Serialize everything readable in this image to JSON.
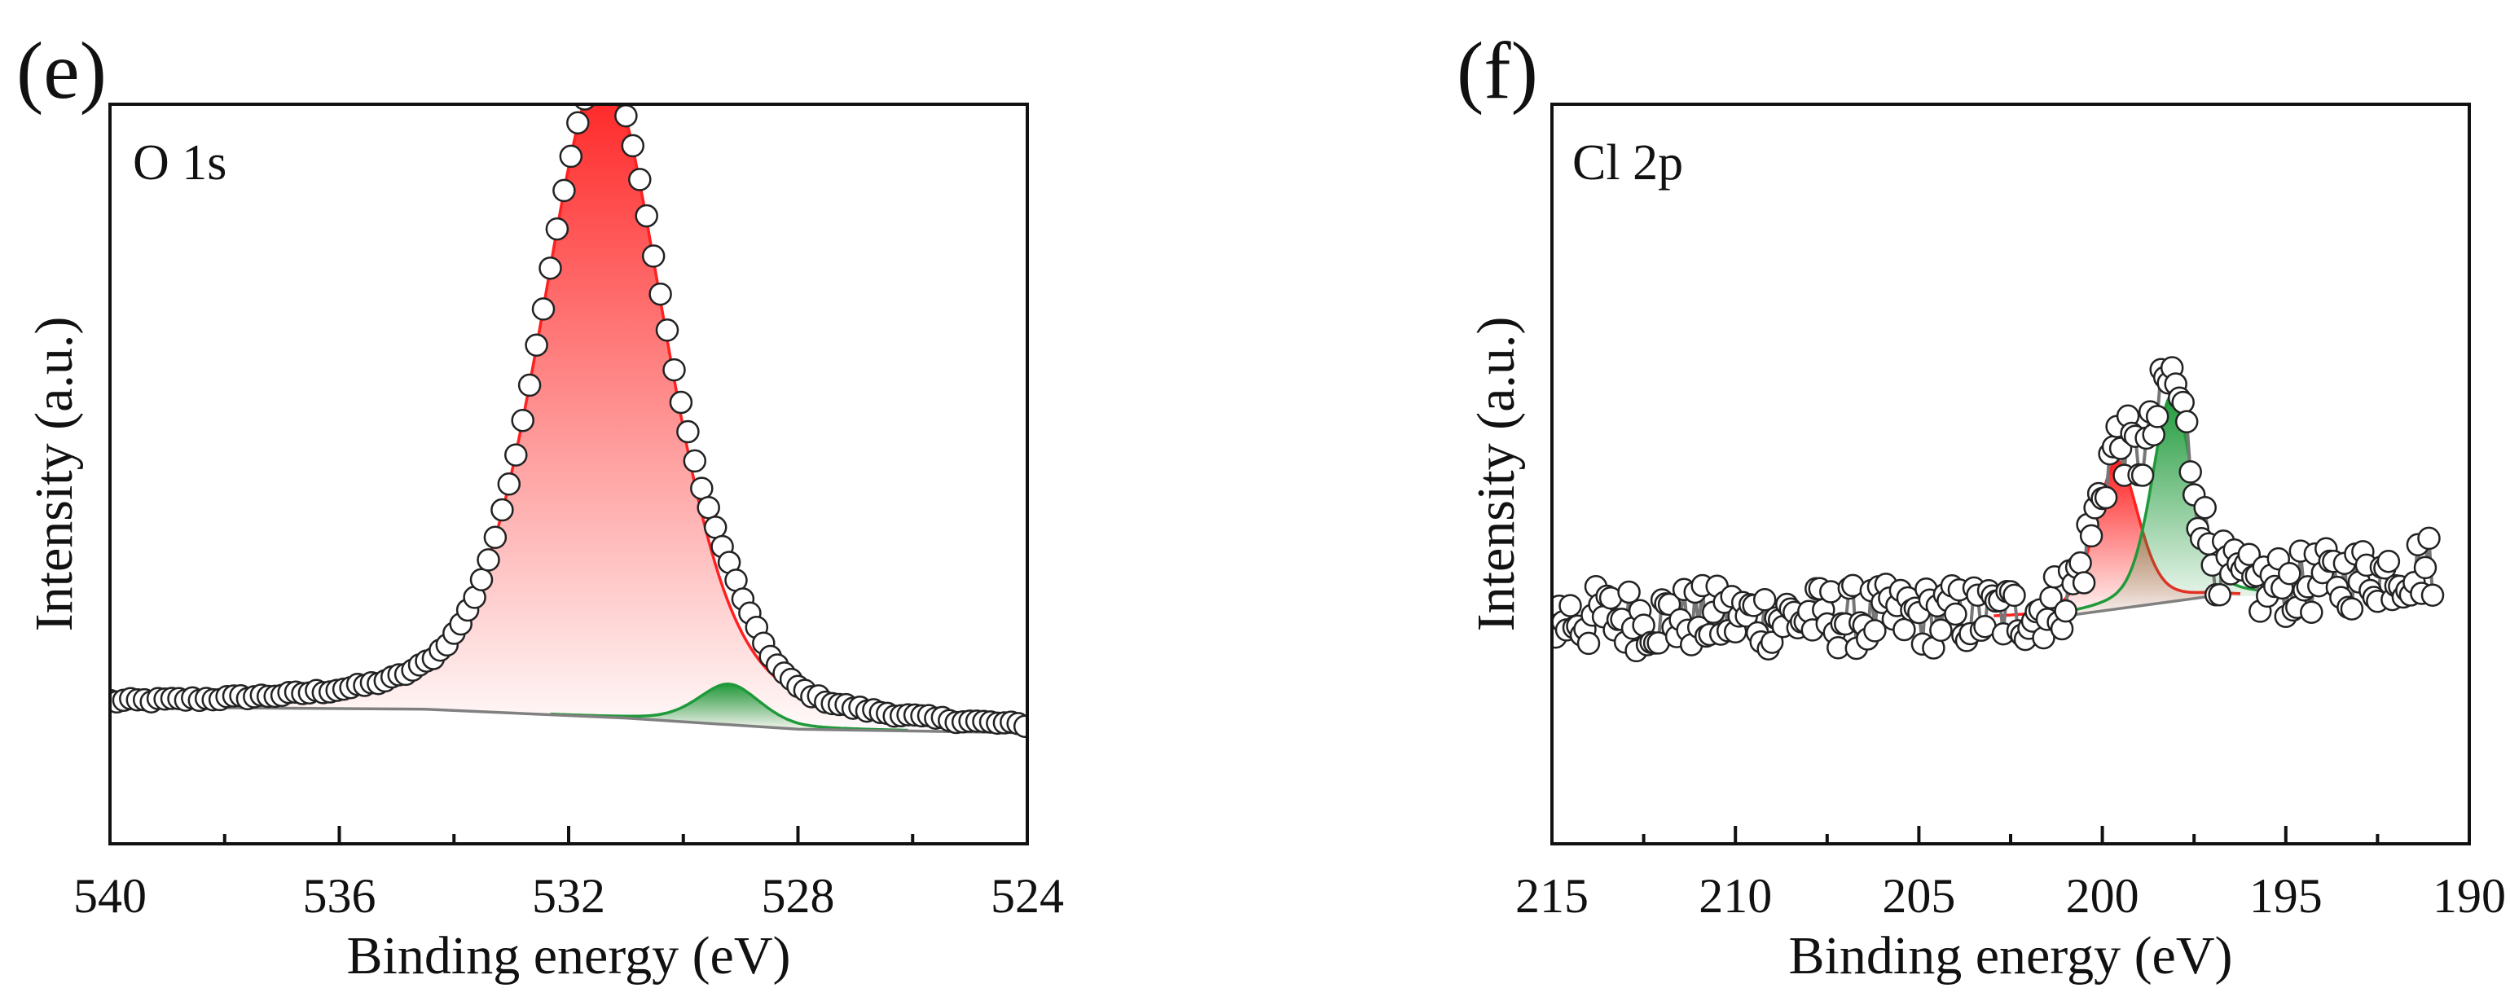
{
  "colors": {
    "axis": "#111111",
    "data_marker": "#222222",
    "background_line": "#808080",
    "peak_red": "#ff2020",
    "peak_green": "#1f9a3a"
  },
  "chart_data": [
    {
      "panel": "(e)",
      "label": "O 1s",
      "type": "line",
      "xlabel": "Binding energy (eV)",
      "ylabel": "Intensity (a.u.)",
      "xlim": [
        540,
        524
      ],
      "x_reversed": true,
      "ylim": [
        0,
        1
      ],
      "x_ticks": [
        540,
        536,
        532,
        528,
        524
      ],
      "x_tick_labels": [
        "540",
        "536",
        "532",
        "528",
        "524"
      ],
      "y_ticks_shown": false,
      "series": [
        {
          "name": "experimental",
          "style": "open-circle",
          "description": "raw XPS data points",
          "x_range": [
            540,
            524
          ],
          "sample_step_eV": 0.12
        },
        {
          "name": "background",
          "style": "line",
          "color": "#808080",
          "points": [
            [
              540,
              0.185
            ],
            [
              534.5,
              0.182
            ],
            [
              531,
              0.17
            ],
            [
              528,
              0.155
            ],
            [
              524,
              0.15
            ]
          ]
        },
        {
          "name": "peak 1 (red)",
          "style": "filled-peak",
          "color": "#ff2020",
          "center": 531.4,
          "height": 0.875,
          "fwhm": 2.6
        },
        {
          "name": "peak 2 (green)",
          "style": "filled-peak",
          "color": "#1f9a3a",
          "center": 529.2,
          "height": 0.055,
          "fwhm": 1.3
        }
      ]
    },
    {
      "panel": "(f)",
      "label": "Cl 2p",
      "type": "line",
      "xlabel": "Binding energy (eV)",
      "ylabel": "Intensity (a.u.)",
      "xlim": [
        215,
        190
      ],
      "x_reversed": true,
      "ylim": [
        0,
        1
      ],
      "x_ticks": [
        215,
        210,
        205,
        200,
        195,
        190
      ],
      "x_tick_labels": [
        "215",
        "210",
        "205",
        "200",
        "195",
        "190"
      ],
      "y_ticks_shown": false,
      "series": [
        {
          "name": "experimental",
          "style": "open-circle-connected",
          "description": "noisy raw XPS data points",
          "x_range": [
            215,
            191
          ],
          "sample_step_eV": 0.1
        },
        {
          "name": "background",
          "style": "line",
          "color": "#808080",
          "points": [
            [
              201.5,
              0.305
            ],
            [
              197.0,
              0.335
            ]
          ]
        },
        {
          "name": "peak 1 (red)",
          "style": "filled-peak",
          "color": "#ff2020",
          "center": 199.6,
          "height": 0.2,
          "fwhm": 1.4
        },
        {
          "name": "peak 2 (green)",
          "style": "filled-peak",
          "color": "#1f9a3a",
          "center": 198.1,
          "height": 0.28,
          "fwhm": 1.3
        }
      ]
    }
  ]
}
